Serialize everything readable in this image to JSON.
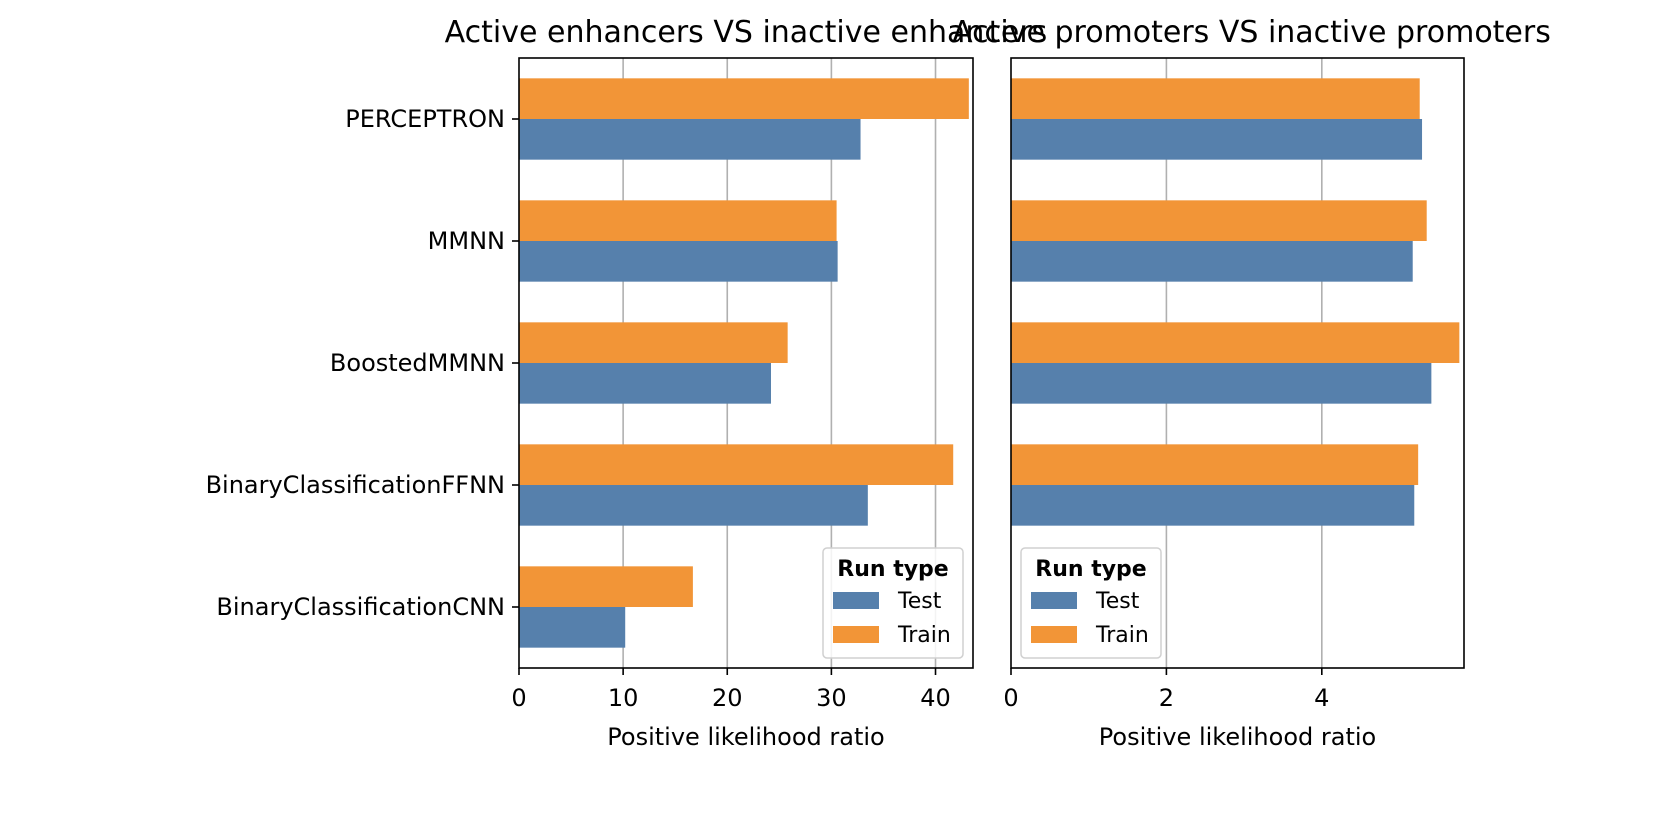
{
  "colors": {
    "Test": "#5680ac",
    "Train": "#f29537",
    "grid": "#b0b0b0",
    "axis": "#000000"
  },
  "chart_data": [
    {
      "type": "bar",
      "orientation": "horizontal",
      "title": "Active enhancers VS inactive enhancers",
      "xlabel": "Positive likelihood ratio",
      "ylabel": "",
      "xlim": [
        0,
        43.6
      ],
      "xticks": [
        0,
        10,
        20,
        30,
        40
      ],
      "grid": "vertical",
      "categories": [
        "PERCEPTRON",
        "MMNN",
        "BoostedMMNN",
        "BinaryClassificationFFNN",
        "BinaryClassificationCNN"
      ],
      "series": [
        {
          "name": "Test",
          "values": [
            32.8,
            30.6,
            24.2,
            33.5,
            10.2
          ]
        },
        {
          "name": "Train",
          "values": [
            43.2,
            30.5,
            25.8,
            41.7,
            16.7
          ]
        }
      ],
      "legend": {
        "title": "Run type",
        "position": "lower-right",
        "entries": [
          "Test",
          "Train"
        ]
      }
    },
    {
      "type": "bar",
      "orientation": "horizontal",
      "title": "Active promoters VS inactive promoters",
      "xlabel": "Positive likelihood ratio",
      "ylabel": "",
      "xlim": [
        0,
        5.83
      ],
      "xticks": [
        0,
        2,
        4
      ],
      "grid": "vertical",
      "categories": [
        "PERCEPTRON",
        "MMNN",
        "BoostedMMNN",
        "BinaryClassificationFFNN",
        "BinaryClassificationCNN"
      ],
      "series": [
        {
          "name": "Test",
          "values": [
            5.29,
            5.17,
            5.41,
            5.19,
            null
          ]
        },
        {
          "name": "Train",
          "values": [
            5.26,
            5.35,
            5.77,
            5.24,
            null
          ]
        }
      ],
      "legend": {
        "title": "Run type",
        "position": "lower-left",
        "entries": [
          "Test",
          "Train"
        ]
      }
    }
  ]
}
